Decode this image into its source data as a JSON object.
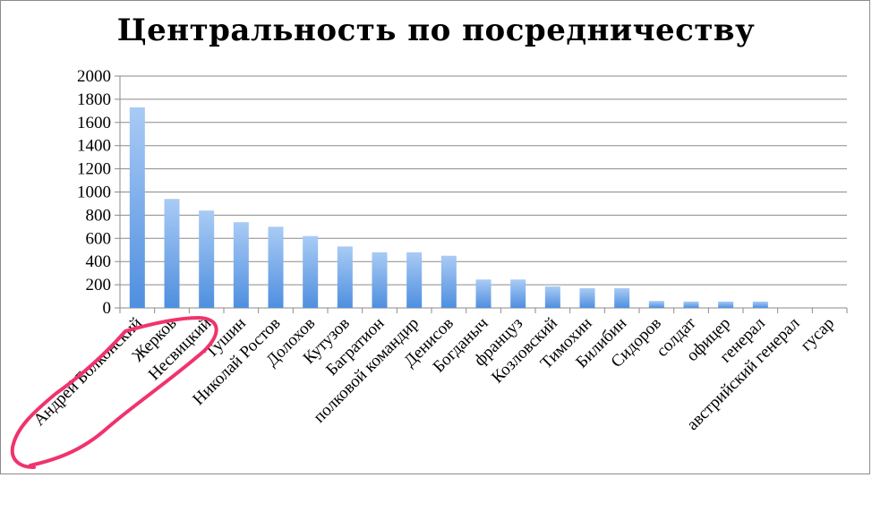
{
  "chart_data": {
    "type": "bar",
    "title": "Центральность по посредничеству",
    "categories": [
      "Андрей Болконский",
      "Жерков",
      "Несвицкий",
      "Тушин",
      "Николай Ростов",
      "Долохов",
      "Кутузов",
      "Багратион",
      "полковой командир",
      "Денисов",
      "Богданыч",
      "француз",
      "Козловский",
      "Тимохин",
      "Билибин",
      "Сидоров",
      "солдат",
      "офицер",
      "генерал",
      "австрийский генерал",
      "гусар"
    ],
    "values": [
      1730,
      940,
      840,
      740,
      700,
      620,
      530,
      480,
      480,
      450,
      245,
      245,
      185,
      170,
      170,
      60,
      55,
      55,
      55,
      0,
      0
    ],
    "ylim": [
      0,
      2000
    ],
    "yticks": [
      0,
      200,
      400,
      600,
      800,
      1000,
      1200,
      1400,
      1600,
      1800,
      2000
    ],
    "grid": true,
    "legend": "none",
    "bar_color": "#4f8fdf",
    "bar_color_light": "#a9cbf5",
    "annotation": {
      "type": "hand-drawn circle around first three category labels",
      "color": "#f0336d"
    }
  }
}
